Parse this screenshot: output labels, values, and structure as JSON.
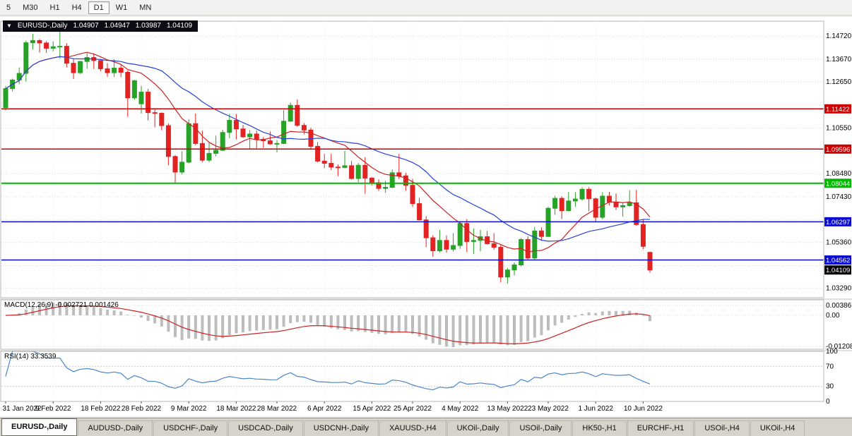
{
  "toolbar": {
    "timeframes": [
      {
        "label": "5",
        "selected": false
      },
      {
        "label": "M30",
        "selected": false
      },
      {
        "label": "H1",
        "selected": false
      },
      {
        "label": "H4",
        "selected": false
      },
      {
        "label": "D1",
        "selected": true
      },
      {
        "label": "W1",
        "selected": false
      },
      {
        "label": "MN",
        "selected": false
      }
    ]
  },
  "symbol_bar": {
    "arrow": "▼",
    "title": "EURUSD-,Daily",
    "open": "1.04907",
    "high": "1.04947",
    "low": "1.03987",
    "close": "1.04109"
  },
  "tabs": [
    {
      "label": "EURUSD-,Daily",
      "selected": true
    },
    {
      "label": "AUDUSD-,Daily",
      "selected": false
    },
    {
      "label": "USDCHF-,Daily",
      "selected": false
    },
    {
      "label": "USDCAD-,Daily",
      "selected": false
    },
    {
      "label": "USDCNH-,Daily",
      "selected": false
    },
    {
      "label": "XAUUSD-,H4",
      "selected": false
    },
    {
      "label": "UKOil-,Daily",
      "selected": false
    },
    {
      "label": "USOil-,Daily",
      "selected": false
    },
    {
      "label": "HK50-,H1",
      "selected": false
    },
    {
      "label": "EURCHF-,H1",
      "selected": false
    },
    {
      "label": "USOil-,H4",
      "selected": false
    },
    {
      "label": "UKOil-,H4",
      "selected": false
    }
  ],
  "colors": {
    "bull": "#26a226",
    "bear": "#e32222",
    "ma_fast": "#cc2222",
    "ma_slow": "#2742d6",
    "macd_hist": "#bdbdbd",
    "macd_signal": "#cc2222",
    "rsi_line": "#4a86c8",
    "grid": "#dcdcdc",
    "vgrid": "#ececec",
    "panel_border": "#b4b4b4",
    "tag_text": "#ffffff",
    "current_tag_bg": "#000000"
  },
  "chart_data": {
    "type": "candlestick",
    "symbol": "EURUSD-",
    "timeframe": "Daily",
    "price_panel": {
      "ylim": [
        1.0285,
        1.154
      ],
      "grid_prices": [
        1.1472,
        1.1367,
        1.1265,
        1.116,
        1.1055,
        1.0953,
        1.0848,
        1.0743,
        1.0638,
        1.0536,
        1.0431,
        1.0329
      ],
      "axis_labels": [
        {
          "value": 1.1472,
          "text": "1.14720"
        },
        {
          "value": 1.1367,
          "text": "1.13670"
        },
        {
          "value": 1.1265,
          "text": "1.12650"
        },
        {
          "value": 1.1055,
          "text": "1.10550"
        },
        {
          "value": 1.0848,
          "text": "1.08480"
        },
        {
          "value": 1.0743,
          "text": "1.07430"
        },
        {
          "value": 1.0536,
          "text": "1.05360"
        },
        {
          "value": 1.0329,
          "text": "1.03290"
        }
      ],
      "hlines": [
        {
          "price": 1.11422,
          "label": "1.11422",
          "color": "#cc0000",
          "width": 1.5
        },
        {
          "price": 1.09596,
          "label": "1.09596",
          "color": "#cc0000",
          "width": 1.5
        },
        {
          "price": 1.08044,
          "label": "1.08044",
          "color": "#00b800",
          "width": 2
        },
        {
          "price": 1.06297,
          "label": "1.06297",
          "color": "#0a0ad0",
          "width": 1.5
        },
        {
          "price": 1.04562,
          "label": "1.04562",
          "color": "#0a0ad0",
          "width": 1.5
        }
      ],
      "current_price": {
        "value": 1.04109,
        "label": "1.04109"
      },
      "moving_averages": [
        {
          "period": 10,
          "color": "#cc2222"
        },
        {
          "period": 21,
          "color": "#2742d6"
        }
      ]
    },
    "x_ticks": [
      {
        "i": 0,
        "label": "31 Jan 2022"
      },
      {
        "i": 7,
        "label": "9 Feb 2022"
      },
      {
        "i": 14,
        "label": "18 Feb 2022"
      },
      {
        "i": 20,
        "label": "28 Feb 2022"
      },
      {
        "i": 27,
        "label": "9 Mar 2022"
      },
      {
        "i": 34,
        "label": "18 Mar 2022"
      },
      {
        "i": 40,
        "label": "28 Mar 2022"
      },
      {
        "i": 47,
        "label": "6 Apr 2022"
      },
      {
        "i": 54,
        "label": "15 Apr 2022"
      },
      {
        "i": 60,
        "label": "25 Apr 2022"
      },
      {
        "i": 67,
        "label": "4 May 2022"
      },
      {
        "i": 74,
        "label": "13 May 2022"
      },
      {
        "i": 80,
        "label": "23 May 2022"
      },
      {
        "i": 87,
        "label": "1 Jun 2022"
      },
      {
        "i": 94,
        "label": "10 Jun 2022"
      }
    ],
    "candles": [
      [
        1.1148,
        1.1245,
        1.1135,
        1.1234
      ],
      [
        1.1234,
        1.1279,
        1.1221,
        1.1273
      ],
      [
        1.1273,
        1.133,
        1.1254,
        1.1303
      ],
      [
        1.1303,
        1.1452,
        1.1266,
        1.1442
      ],
      [
        1.1442,
        1.1483,
        1.1411,
        1.1452
      ],
      [
        1.1452,
        1.1459,
        1.1398,
        1.1441
      ],
      [
        1.1441,
        1.1449,
        1.1396,
        1.1417
      ],
      [
        1.1417,
        1.1448,
        1.1403,
        1.1424
      ],
      [
        1.1424,
        1.1495,
        1.137,
        1.1426
      ],
      [
        1.1426,
        1.144,
        1.133,
        1.1349
      ],
      [
        1.1349,
        1.1368,
        1.1278,
        1.1306
      ],
      [
        1.1306,
        1.136,
        1.13,
        1.1357
      ],
      [
        1.1357,
        1.1396,
        1.1324,
        1.1375
      ],
      [
        1.1375,
        1.1394,
        1.1323,
        1.1361
      ],
      [
        1.1361,
        1.1369,
        1.1313,
        1.1324
      ],
      [
        1.1324,
        1.1349,
        1.1288,
        1.1306
      ],
      [
        1.1306,
        1.1367,
        1.1287,
        1.1327
      ],
      [
        1.1327,
        1.1342,
        1.1286,
        1.1308
      ],
      [
        1.1308,
        1.1316,
        1.1106,
        1.1192
      ],
      [
        1.1192,
        1.1274,
        1.1184,
        1.127
      ],
      [
        1.1165,
        1.1246,
        1.1121,
        1.1218
      ],
      [
        1.1218,
        1.1232,
        1.109,
        1.1125
      ],
      [
        1.1125,
        1.1139,
        1.1058,
        1.1122
      ],
      [
        1.1122,
        1.1126,
        1.1045,
        1.1066
      ],
      [
        1.1066,
        1.1076,
        1.0886,
        1.0926
      ],
      [
        1.0926,
        1.0932,
        1.0806,
        1.0855
      ],
      [
        1.0855,
        1.0949,
        1.0845,
        1.09
      ],
      [
        1.09,
        1.1095,
        1.0895,
        1.1075
      ],
      [
        1.1075,
        1.1121,
        1.0977,
        1.0985
      ],
      [
        1.0985,
        1.1043,
        1.0901,
        1.0909
      ],
      [
        1.0909,
        1.0992,
        1.09,
        1.094
      ],
      [
        1.094,
        1.102,
        1.0927,
        1.0954
      ],
      [
        1.0954,
        1.1047,
        1.095,
        1.1035
      ],
      [
        1.1035,
        1.1119,
        1.1009,
        1.109
      ],
      [
        1.109,
        1.1119,
        1.1003,
        1.1051
      ],
      [
        1.1051,
        1.1069,
        1.1011,
        1.1015
      ],
      [
        1.1015,
        1.1046,
        1.0961,
        1.1028
      ],
      [
        1.1028,
        1.1044,
        1.0963,
        1.1004
      ],
      [
        1.1004,
        1.1014,
        1.0965,
        1.0997
      ],
      [
        1.0997,
        1.1039,
        1.0979,
        1.0983
      ],
      [
        1.0983,
        1.1,
        1.0944,
        1.0985
      ],
      [
        1.0985,
        1.1137,
        1.0982,
        1.1086
      ],
      [
        1.1086,
        1.1171,
        1.1083,
        1.1158
      ],
      [
        1.1158,
        1.1185,
        1.1061,
        1.1067
      ],
      [
        1.1067,
        1.1077,
        1.1027,
        1.1046
      ],
      [
        1.1046,
        1.1056,
        1.096,
        1.0972
      ],
      [
        1.0972,
        1.0991,
        1.0899,
        1.0905
      ],
      [
        1.0905,
        1.0938,
        1.0874,
        1.0895
      ],
      [
        1.0895,
        1.0938,
        1.0865,
        1.0878
      ],
      [
        1.0878,
        1.089,
        1.0837,
        1.0876
      ],
      [
        1.0876,
        1.0951,
        1.0872,
        1.0884
      ],
      [
        1.0884,
        1.0905,
        1.0821,
        1.0826
      ],
      [
        1.0826,
        1.0896,
        1.0809,
        1.0886
      ],
      [
        1.0886,
        1.0923,
        1.0757,
        1.0828
      ],
      [
        1.0828,
        1.0832,
        1.0795,
        1.0807
      ],
      [
        1.0807,
        1.0822,
        1.077,
        1.0781
      ],
      [
        1.0781,
        1.0815,
        1.0761,
        1.0786
      ],
      [
        1.0786,
        1.0867,
        1.0782,
        1.0852
      ],
      [
        1.0852,
        1.0937,
        1.0824,
        1.0838
      ],
      [
        1.0838,
        1.0852,
        1.077,
        1.0795
      ],
      [
        1.0795,
        1.0824,
        1.0697,
        1.0712
      ],
      [
        1.0712,
        1.0738,
        1.0635,
        1.0638
      ],
      [
        1.0638,
        1.0655,
        1.0514,
        1.0557
      ],
      [
        1.0557,
        1.0568,
        1.0471,
        1.0498
      ],
      [
        1.0498,
        1.0593,
        1.0491,
        1.0545
      ],
      [
        1.0545,
        1.0568,
        1.049,
        1.0505
      ],
      [
        1.0505,
        1.0578,
        1.0495,
        1.0522
      ],
      [
        1.0522,
        1.0632,
        1.0507,
        1.0622
      ],
      [
        1.0622,
        1.0642,
        1.0492,
        1.054
      ],
      [
        1.054,
        1.0599,
        1.0483,
        1.0545
      ],
      [
        1.0545,
        1.0593,
        1.0495,
        1.0562
      ],
      [
        1.0562,
        1.0588,
        1.0526,
        1.053
      ],
      [
        1.053,
        1.0578,
        1.0503,
        1.0514
      ],
      [
        1.0514,
        1.0525,
        1.0354,
        1.0379
      ],
      [
        1.0379,
        1.042,
        1.0349,
        1.0411
      ],
      [
        1.0411,
        1.0445,
        1.0386,
        1.0434
      ],
      [
        1.0434,
        1.0556,
        1.0427,
        1.0549
      ],
      [
        1.0549,
        1.0564,
        1.046,
        1.0465
      ],
      [
        1.0465,
        1.0607,
        1.0459,
        1.0588
      ],
      [
        1.0588,
        1.0604,
        1.0543,
        1.0563
      ],
      [
        1.0563,
        1.0697,
        1.0561,
        1.0691
      ],
      [
        1.0691,
        1.0748,
        1.0661,
        1.0736
      ],
      [
        1.0736,
        1.0745,
        1.0642,
        1.068
      ],
      [
        1.068,
        1.0765,
        1.0677,
        1.0724
      ],
      [
        1.0724,
        1.0764,
        1.0697,
        1.0733
      ],
      [
        1.0733,
        1.0786,
        1.0726,
        1.0777
      ],
      [
        1.0777,
        1.0787,
        1.0678,
        1.0734
      ],
      [
        1.0734,
        1.0739,
        1.0627,
        1.065
      ],
      [
        1.065,
        1.0764,
        1.0641,
        1.0746
      ],
      [
        1.0746,
        1.0765,
        1.0704,
        1.0719
      ],
      [
        1.0719,
        1.0758,
        1.0683,
        1.0697
      ],
      [
        1.0697,
        1.0715,
        1.0653,
        1.0703
      ],
      [
        1.0703,
        1.0773,
        1.0698,
        1.0716
      ],
      [
        1.0716,
        1.0774,
        1.0611,
        1.0617
      ],
      [
        1.0617,
        1.0642,
        1.0506,
        1.0518
      ],
      [
        1.04907,
        1.04947,
        1.03987,
        1.04109
      ]
    ],
    "macd_panel": {
      "label": "MACD(12,26,9) -0.002721 0.001426",
      "params": [
        12,
        26,
        9
      ],
      "main_value_text": "-0.002721",
      "signal_value_text": "0.001426",
      "axis_labels": [
        {
          "value": 0.00386,
          "text": "0.00386"
        },
        {
          "value": 0,
          "text": "0.00"
        },
        {
          "value": -0.01208,
          "text": "-0.01208"
        }
      ]
    },
    "rsi_panel": {
      "label": "RSI(14) 33.3539",
      "period": 14,
      "current_value_text": "33.3539",
      "levels": [
        70,
        30
      ],
      "axis_labels": [
        {
          "value": 100,
          "text": "100"
        },
        {
          "value": 70,
          "text": "70"
        },
        {
          "value": 30,
          "text": "30"
        },
        {
          "value": 0,
          "text": "0"
        }
      ]
    }
  }
}
